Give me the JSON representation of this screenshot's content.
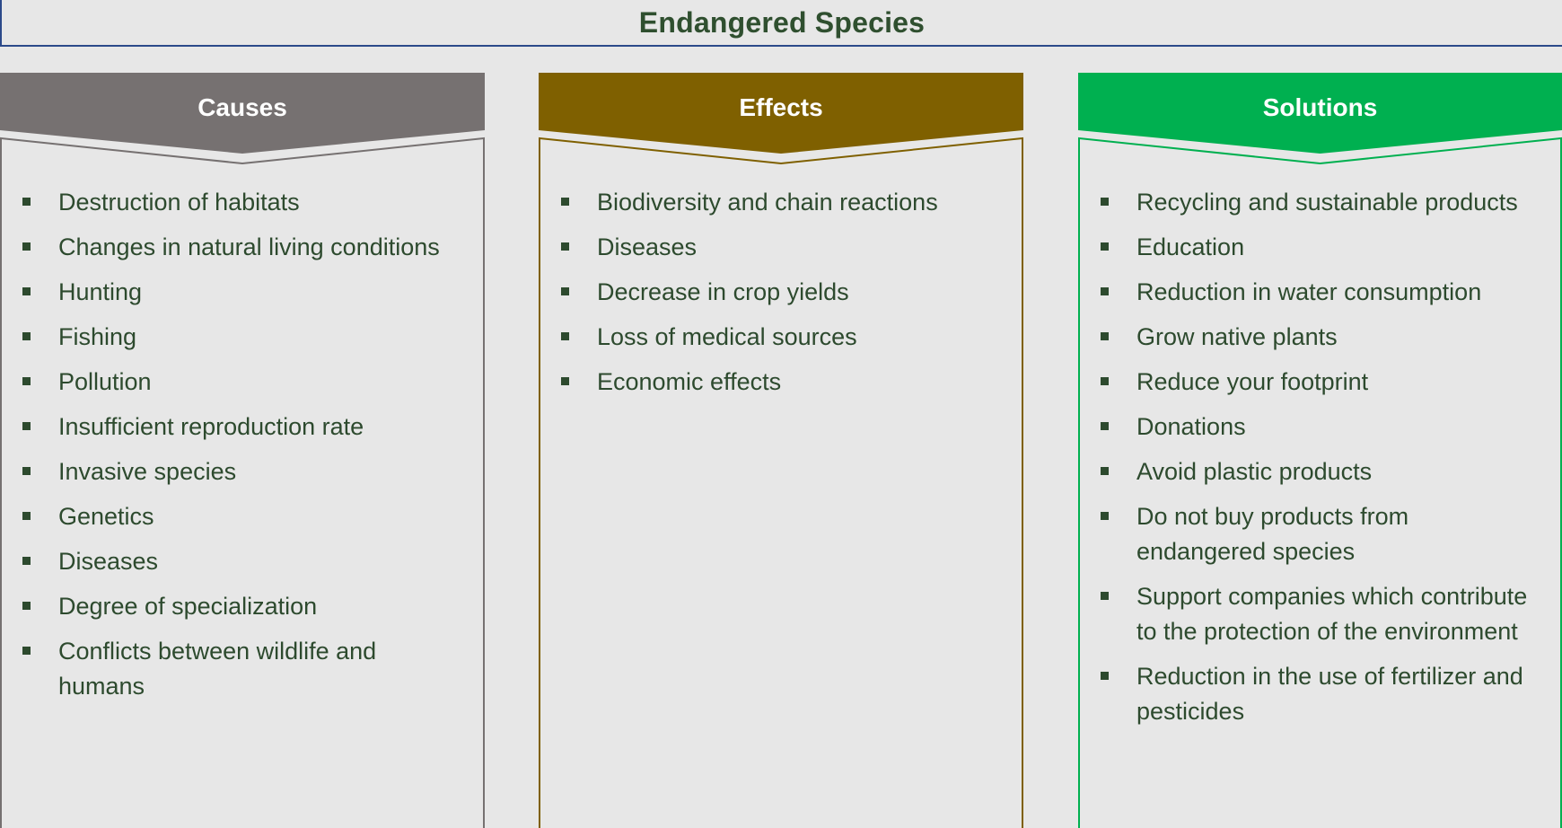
{
  "title": "Endangered Species",
  "colors": {
    "background": "#e7e7e7",
    "title_border": "#2c4a8a",
    "text": "#2d4a2e"
  },
  "columns": [
    {
      "id": "causes",
      "header": "Causes",
      "color": "#767171",
      "items": [
        "Destruction of habitats",
        "Changes in natural living conditions",
        "Hunting",
        "Fishing",
        "Pollution",
        "Insufficient reproduction rate",
        "Invasive species",
        "Genetics",
        "Diseases",
        "Degree of specialization",
        "Conflicts between wildlife and humans"
      ]
    },
    {
      "id": "effects",
      "header": "Effects",
      "color": "#7f6000",
      "items": [
        "Biodiversity and chain reactions",
        "Diseases",
        "Decrease in crop yields",
        "Loss of medical sources",
        "Economic effects"
      ]
    },
    {
      "id": "solutions",
      "header": "Solutions",
      "color": "#00b050",
      "items": [
        "Recycling and sustainable products",
        "Education",
        "Reduction in water consumption",
        "Grow native plants",
        "Reduce your footprint",
        "Donations",
        "Avoid plastic products",
        "Do not buy products from endangered species",
        "Support companies which contribute to the protection of the environment",
        "Reduction in the use of fertilizer and pesticides"
      ]
    }
  ]
}
